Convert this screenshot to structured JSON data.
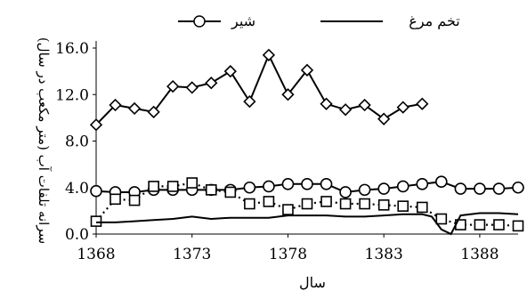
{
  "chart_data": {
    "type": "line",
    "xlabel": "سال",
    "ylabel": "سرانه تلفات آب (متر مکعب در سال)",
    "xlim": [
      1368,
      1390
    ],
    "ylim": [
      0,
      16
    ],
    "x_ticks": [
      "1368",
      "1373",
      "1378",
      "1383",
      "1388"
    ],
    "y_ticks": [
      "0.0",
      "4.0",
      "8.0",
      "12.0",
      "16.0"
    ],
    "grid": false,
    "legend_position": "top",
    "series": [
      {
        "marker": "diamond",
        "line": "solid",
        "x": [
          1368,
          1369,
          1370,
          1371,
          1372,
          1373,
          1374,
          1375,
          1376,
          1377,
          1378,
          1379,
          1380,
          1381,
          1382,
          1383,
          1384,
          1385
        ],
        "y": [
          9.4,
          11.1,
          10.8,
          10.5,
          12.7,
          12.6,
          13.0,
          14.0,
          11.4,
          15.4,
          12.0,
          14.1,
          11.2,
          10.7,
          11.1,
          9.9,
          10.9,
          11.2
        ]
      },
      {
        "name": "شیر",
        "marker": "circle",
        "line": "solid",
        "x": [
          1368,
          1369,
          1370,
          1371,
          1372,
          1373,
          1374,
          1375,
          1376,
          1377,
          1378,
          1379,
          1380,
          1381,
          1382,
          1383,
          1384,
          1385,
          1386,
          1387,
          1388,
          1389,
          1390
        ],
        "y": [
          3.7,
          3.6,
          3.6,
          3.8,
          3.8,
          3.8,
          3.8,
          3.8,
          4.0,
          4.1,
          4.3,
          4.3,
          4.3,
          3.6,
          3.8,
          3.9,
          4.1,
          4.3,
          4.5,
          3.9,
          3.9,
          3.9,
          4.0
        ]
      },
      {
        "marker": "square",
        "line": "dotted",
        "x": [
          1368,
          1369,
          1370,
          1371,
          1372,
          1373,
          1374,
          1375,
          1376,
          1377,
          1378,
          1379,
          1380,
          1381,
          1382,
          1383,
          1384,
          1385,
          1386,
          1387,
          1388,
          1389,
          1390
        ],
        "y": [
          1.1,
          3.0,
          2.9,
          4.1,
          4.1,
          4.4,
          3.8,
          3.6,
          2.6,
          2.8,
          2.1,
          2.6,
          2.8,
          2.6,
          2.6,
          2.5,
          2.4,
          2.3,
          1.3,
          0.8,
          0.8,
          0.8,
          0.7
        ]
      },
      {
        "name": "تخم مرغ",
        "marker": "none",
        "line": "solid",
        "x": [
          1368,
          1369,
          1370,
          1371,
          1372,
          1373,
          1374,
          1375,
          1376,
          1377,
          1378,
          1379,
          1380,
          1381,
          1382,
          1383,
          1384,
          1385,
          1385.5,
          1386,
          1386.5,
          1387,
          1388,
          1389,
          1390
        ],
        "y": [
          1.0,
          1.0,
          1.1,
          1.2,
          1.3,
          1.5,
          1.3,
          1.4,
          1.4,
          1.4,
          1.6,
          1.6,
          1.6,
          1.5,
          1.5,
          1.6,
          1.7,
          1.7,
          1.5,
          0.4,
          0.0,
          1.6,
          1.8,
          1.8,
          1.7
        ]
      }
    ]
  }
}
